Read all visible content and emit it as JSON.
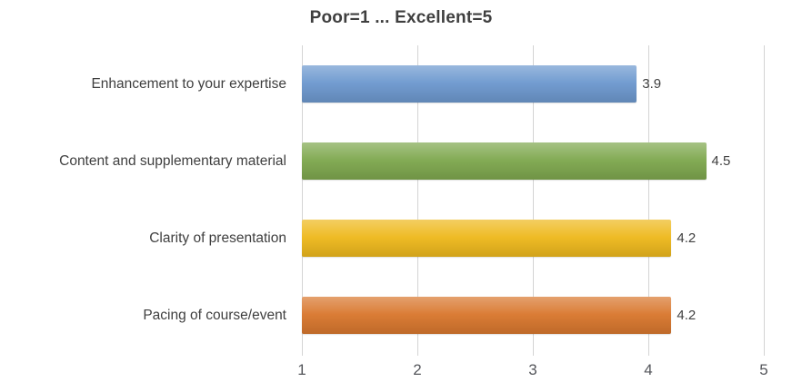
{
  "chart_data": {
    "type": "bar",
    "orientation": "horizontal",
    "title": "Poor=1 ... Excellent=5",
    "categories": [
      "Enhancement to your expertise",
      "Content and supplementary material",
      "Clarity of presentation",
      "Pacing of course/event"
    ],
    "values": [
      3.9,
      4.5,
      4.2,
      4.2
    ],
    "value_labels": [
      "3.9",
      "4.5",
      "4.2",
      "4.2"
    ],
    "bar_colors": [
      "#6E99CF",
      "#7FA84F",
      "#EEB91E",
      "#D9782F"
    ],
    "xlabel": "",
    "ylabel": "",
    "xlim": [
      1,
      5
    ],
    "x_ticks": [
      "1",
      "2",
      "3",
      "4",
      "5"
    ],
    "grid": true,
    "grid_color": "#D4D4D4",
    "legend": false,
    "title_color": "#3F3F3F",
    "category_text_color": "#3F3F3F",
    "axis_text_color": "#54565B",
    "value_text_color": "#404040",
    "background_color": "#FFFFFF"
  }
}
